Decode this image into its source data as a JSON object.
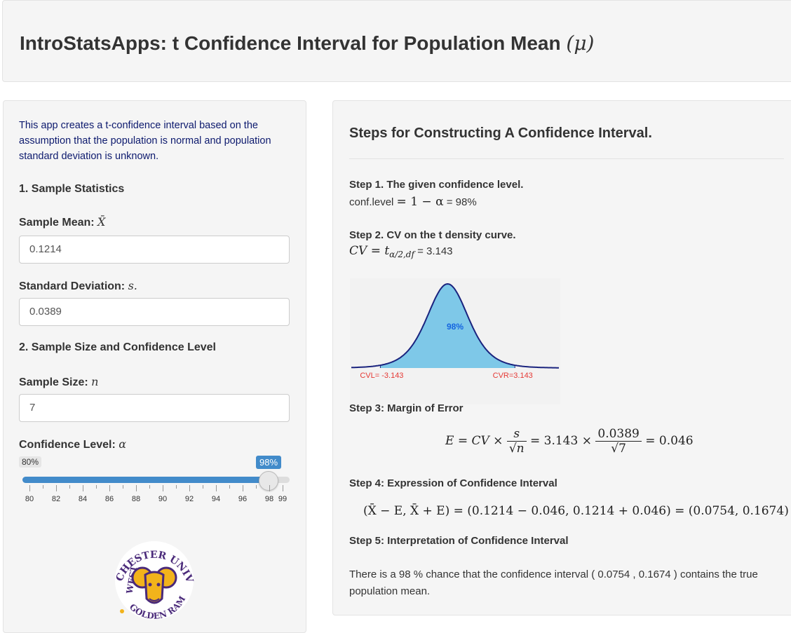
{
  "header": {
    "title": "IntroStatsApps: t Confidence Interval for Population Mean",
    "title_symbol": "(μ)"
  },
  "sidebar": {
    "intro": "This app creates a t-confidence interval based on the assumption that the population is normal and population standard deviation is unknown.",
    "section1": "1. Sample Statistics",
    "mean_label": "Sample Mean:",
    "mean_symbol": "X̄",
    "mean_value": "0.1214",
    "sd_label": "Standard Deviation:",
    "sd_symbol": "s.",
    "sd_value": "0.0389",
    "section2": "2. Sample Size and Confidence Level",
    "n_label": "Sample Size:",
    "n_symbol": "n",
    "n_value": "7",
    "conf_label": "Confidence Level:",
    "conf_symbol": "α",
    "slider": {
      "min_label": "80%",
      "value_label": "98%",
      "min": 80,
      "max": 99,
      "value": 98,
      "tick_labels": [
        "80",
        "82",
        "84",
        "86",
        "88",
        "90",
        "92",
        "94",
        "96",
        "98",
        "99"
      ]
    },
    "logo": {
      "top_text": "CHESTER UNIVERSITY",
      "left_text": "WEST",
      "bottom_text": "GOLDEN RAMS"
    }
  },
  "main": {
    "title": "Steps for Constructing A Confidence Interval.",
    "step1_title": "Step 1. The given confidence level.",
    "step1_text_a": "conf.level",
    "step1_math": "= 1 − α",
    "step1_value": "= 98%",
    "step2_title": "Step 2. CV on the t density curve.",
    "step2_math": "CV = t",
    "step2_sub": "α/2,df",
    "step2_value": "= 3.143",
    "chart_data": {
      "type": "area",
      "distribution": "t",
      "df": 6,
      "shaded_label": "98%",
      "cv_left_label": "CVL= -3.143",
      "cv_right_label": "CVR=3.143",
      "cv_left": -3.143,
      "cv_right": 3.143,
      "colors": {
        "fill": "#7ec8e8",
        "curve": "#1a237e",
        "label": "#1565e0",
        "cv": "#e53935"
      }
    },
    "step3_title": "Step 3: Margin of Error",
    "step3": {
      "lhs": "E = CV ×",
      "frac1_num": "s",
      "frac1_den": "√n",
      "mid": "= 3.143 ×",
      "frac2_num": "0.0389",
      "frac2_den": "√7",
      "rhs": "= 0.046"
    },
    "step4_title": "Step 4: Expression of Confidence Interval",
    "step4_formula": "(X̄ − E, X̄ + E) = (0.1214 − 0.046, 0.1214 + 0.046) = (0.0754, 0.1674)",
    "step5_title": "Step 5: Interpretation of Confidence Interval",
    "step5_text": "There is a 98 % chance that the confidence interval ( 0.0754 , 0.1674 ) contains the true population mean."
  }
}
